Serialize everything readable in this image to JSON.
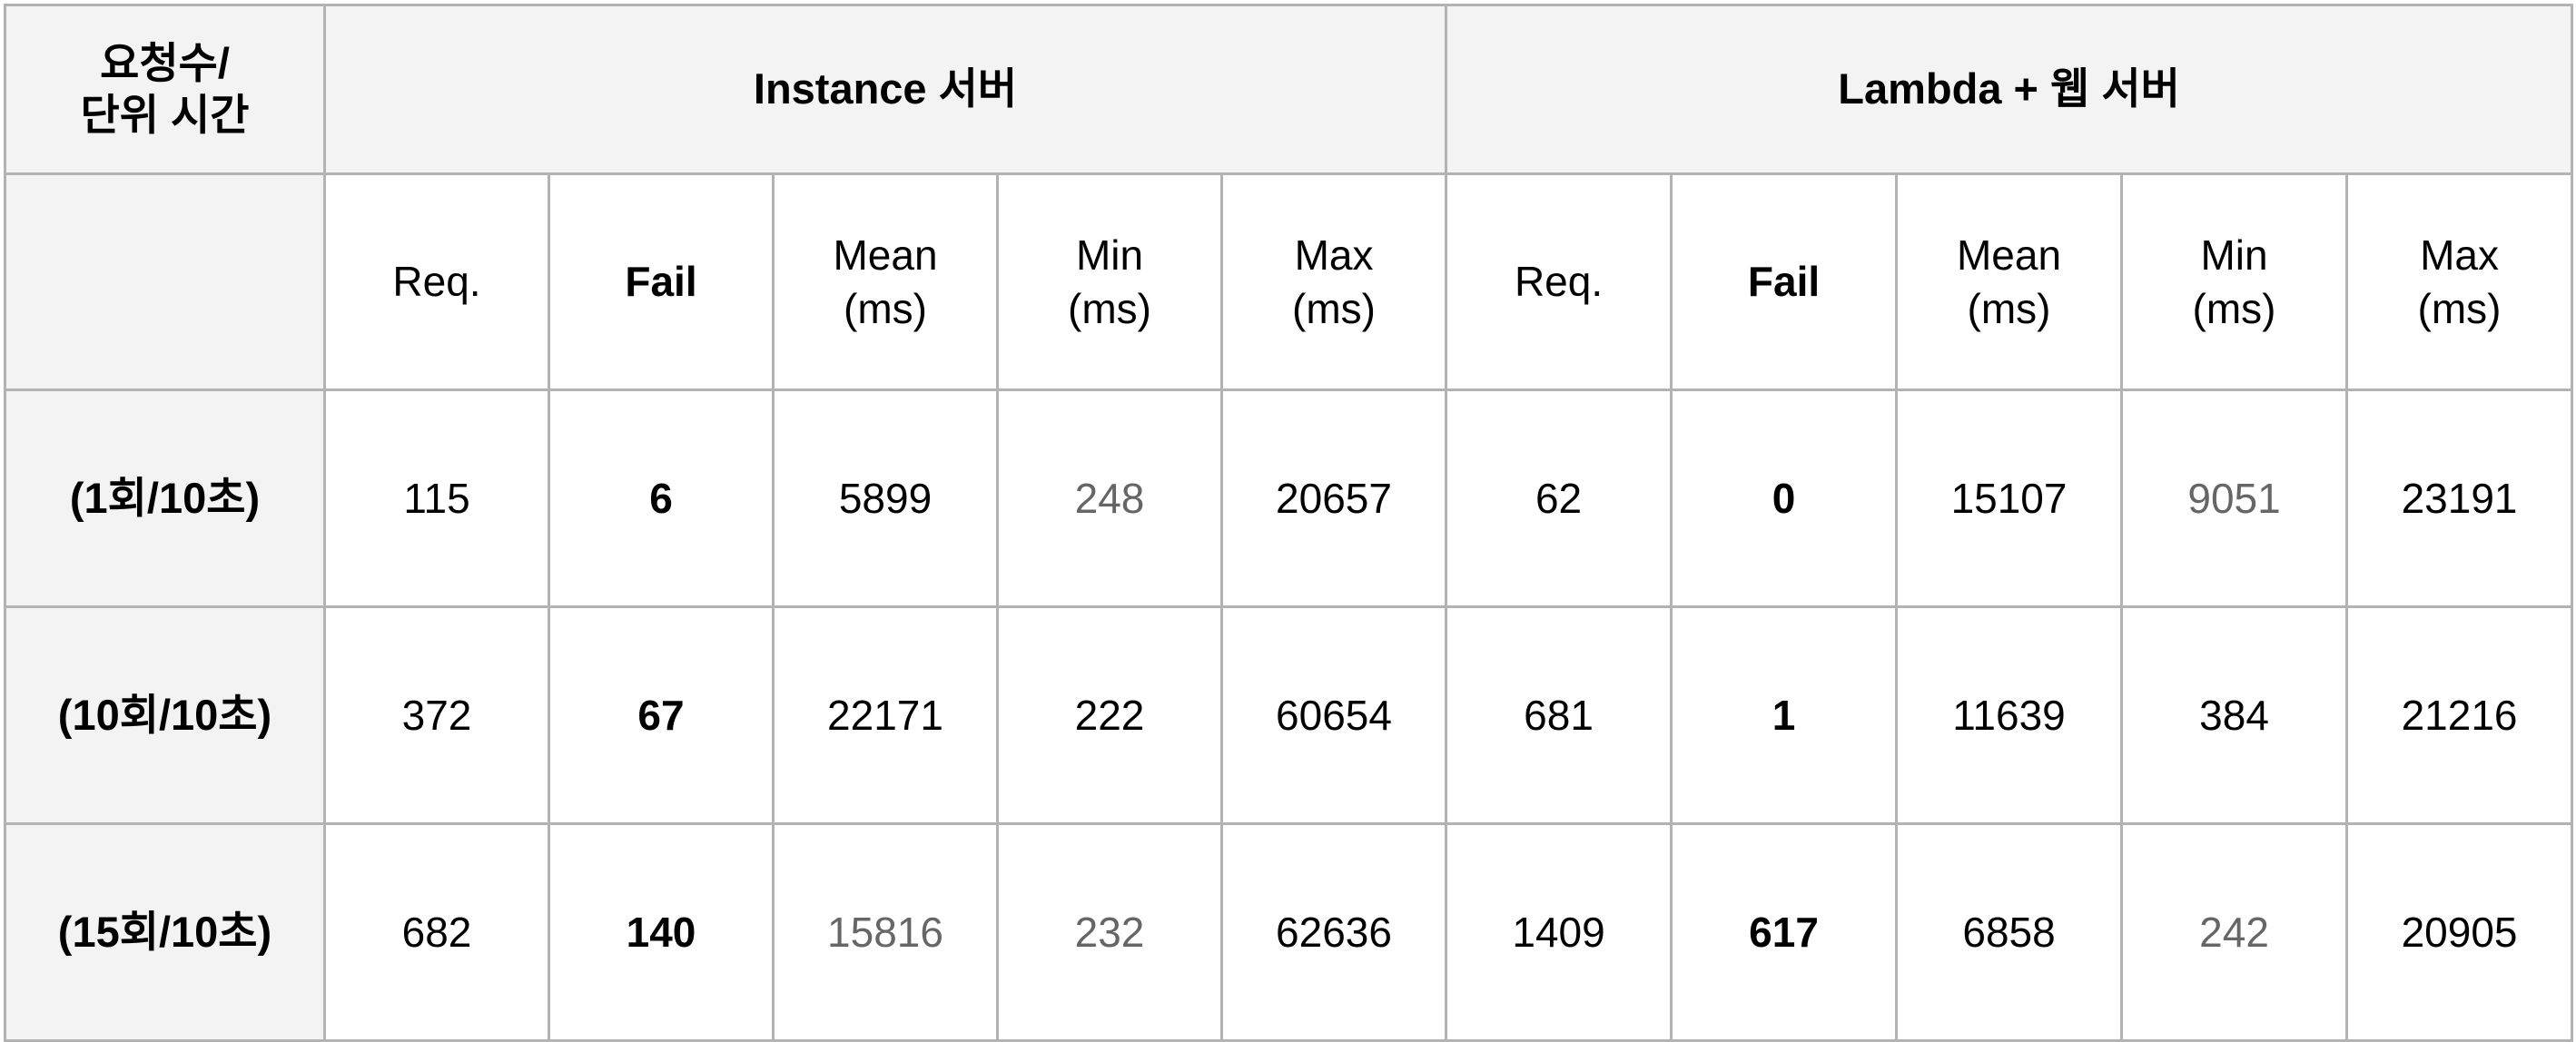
{
  "table": {
    "corner_label_line1": "요청수/",
    "corner_label_line2": "단위 시간",
    "groups": [
      {
        "label": "Instance 서버"
      },
      {
        "label": "Lambda + 웹 서버"
      }
    ],
    "subheaders": [
      {
        "line1": "Req.",
        "line2": ""
      },
      {
        "line1": "Fail",
        "line2": ""
      },
      {
        "line1": "Mean",
        "line2": "(ms)"
      },
      {
        "line1": "Min",
        "line2": "(ms)"
      },
      {
        "line1": "Max",
        "line2": "(ms)"
      }
    ],
    "rows": [
      {
        "label": "(1회/10초)",
        "instance": [
          "115",
          "6",
          "5899",
          "248",
          "20657"
        ],
        "lambda": [
          "62",
          "0",
          "15107",
          "9051",
          "23191"
        ]
      },
      {
        "label": "(10회/10초)",
        "instance": [
          "372",
          "67",
          "22171",
          "222",
          "60654"
        ],
        "lambda": [
          "681",
          "1",
          "11639",
          "384",
          "21216"
        ]
      },
      {
        "label": "(15회/10초)",
        "instance": [
          "682",
          "140",
          "15816",
          "232",
          "62636"
        ],
        "lambda": [
          "1409",
          "617",
          "6858",
          "242",
          "20905"
        ]
      }
    ],
    "text_colors": {
      "normal": "#000000",
      "muted": "#666666",
      "header_background": "#f3f3f3",
      "border": "#b3b3b3"
    }
  }
}
